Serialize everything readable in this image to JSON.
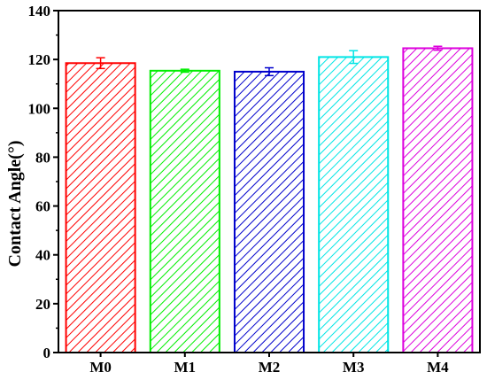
{
  "chart_data": {
    "type": "bar",
    "title": "",
    "xlabel": "",
    "ylabel": "Contact Angle(°)",
    "ylim": [
      0,
      140
    ],
    "yticks": [
      0,
      20,
      40,
      60,
      80,
      100,
      120,
      140
    ],
    "grid": false,
    "categories": [
      "M0",
      "M1",
      "M2",
      "M3",
      "M4"
    ],
    "values": [
      118.5,
      115.4,
      115.0,
      121.0,
      124.6
    ],
    "errors": [
      2.2,
      0.6,
      1.6,
      2.6,
      0.8
    ],
    "colors": [
      "#ff0000",
      "#00ee00",
      "#0000cc",
      "#00e5e5",
      "#dd00dd"
    ],
    "fill": "diagonal-hatch"
  }
}
